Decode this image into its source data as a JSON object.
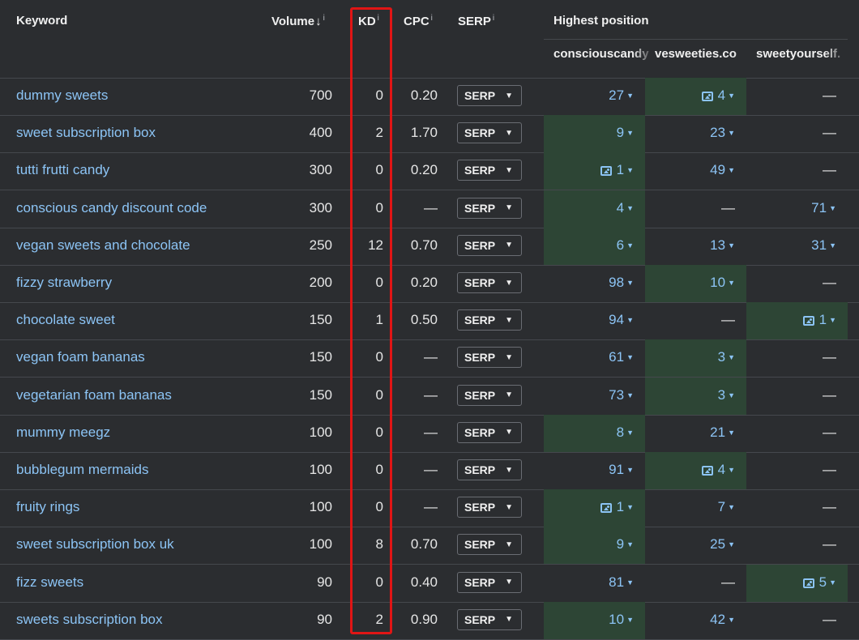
{
  "header": {
    "keyword": "Keyword",
    "volume": "Volume",
    "volume_sort_arrow": "↓",
    "kd": "KD",
    "cpc": "CPC",
    "serp": "SERP",
    "info_mark": "i",
    "highest_position": "Highest position",
    "sites": [
      "consciouscandy",
      "vesweeties.co",
      "sweetyourself."
    ]
  },
  "serp_button_label": "SERP",
  "caret": "▼",
  "dash": "—",
  "colors": {
    "highlight": "#2d4535",
    "link": "#8cc4f5",
    "kd_outline": "#e01515"
  },
  "rows": [
    {
      "keyword": "dummy sweets",
      "volume": "700",
      "kd": "0",
      "cpc": "0.20",
      "pos": [
        {
          "v": "27",
          "hl": false,
          "img": false
        },
        {
          "v": "4",
          "hl": true,
          "img": true
        },
        {
          "v": "",
          "hl": false,
          "img": false
        }
      ]
    },
    {
      "keyword": "sweet subscription box",
      "volume": "400",
      "kd": "2",
      "cpc": "1.70",
      "pos": [
        {
          "v": "9",
          "hl": true,
          "img": false
        },
        {
          "v": "23",
          "hl": false,
          "img": false
        },
        {
          "v": "",
          "hl": false,
          "img": false
        }
      ]
    },
    {
      "keyword": "tutti frutti candy",
      "volume": "300",
      "kd": "0",
      "cpc": "0.20",
      "pos": [
        {
          "v": "1",
          "hl": true,
          "img": true
        },
        {
          "v": "49",
          "hl": false,
          "img": false
        },
        {
          "v": "",
          "hl": false,
          "img": false
        }
      ]
    },
    {
      "keyword": "conscious candy discount code",
      "volume": "300",
      "kd": "0",
      "cpc": "—",
      "pos": [
        {
          "v": "4",
          "hl": true,
          "img": false
        },
        {
          "v": "",
          "hl": false,
          "img": false
        },
        {
          "v": "71",
          "hl": false,
          "img": false
        }
      ]
    },
    {
      "keyword": "vegan sweets and chocolate",
      "volume": "250",
      "kd": "12",
      "cpc": "0.70",
      "pos": [
        {
          "v": "6",
          "hl": true,
          "img": false
        },
        {
          "v": "13",
          "hl": false,
          "img": false
        },
        {
          "v": "31",
          "hl": false,
          "img": false
        }
      ]
    },
    {
      "keyword": "fizzy strawberry",
      "volume": "200",
      "kd": "0",
      "cpc": "0.20",
      "pos": [
        {
          "v": "98",
          "hl": false,
          "img": false
        },
        {
          "v": "10",
          "hl": true,
          "img": false
        },
        {
          "v": "",
          "hl": false,
          "img": false
        }
      ]
    },
    {
      "keyword": "chocolate sweet",
      "volume": "150",
      "kd": "1",
      "cpc": "0.50",
      "pos": [
        {
          "v": "94",
          "hl": false,
          "img": false
        },
        {
          "v": "",
          "hl": false,
          "img": false
        },
        {
          "v": "1",
          "hl": true,
          "img": true
        }
      ]
    },
    {
      "keyword": "vegan foam bananas",
      "volume": "150",
      "kd": "0",
      "cpc": "—",
      "pos": [
        {
          "v": "61",
          "hl": false,
          "img": false
        },
        {
          "v": "3",
          "hl": true,
          "img": false
        },
        {
          "v": "",
          "hl": false,
          "img": false
        }
      ]
    },
    {
      "keyword": "vegetarian foam bananas",
      "volume": "150",
      "kd": "0",
      "cpc": "—",
      "pos": [
        {
          "v": "73",
          "hl": false,
          "img": false
        },
        {
          "v": "3",
          "hl": true,
          "img": false
        },
        {
          "v": "",
          "hl": false,
          "img": false
        }
      ]
    },
    {
      "keyword": "mummy meegz",
      "volume": "100",
      "kd": "0",
      "cpc": "—",
      "pos": [
        {
          "v": "8",
          "hl": true,
          "img": false
        },
        {
          "v": "21",
          "hl": false,
          "img": false
        },
        {
          "v": "",
          "hl": false,
          "img": false
        }
      ]
    },
    {
      "keyword": "bubblegum mermaids",
      "volume": "100",
      "kd": "0",
      "cpc": "—",
      "pos": [
        {
          "v": "91",
          "hl": false,
          "img": false
        },
        {
          "v": "4",
          "hl": true,
          "img": true
        },
        {
          "v": "",
          "hl": false,
          "img": false
        }
      ]
    },
    {
      "keyword": "fruity rings",
      "volume": "100",
      "kd": "0",
      "cpc": "—",
      "pos": [
        {
          "v": "1",
          "hl": true,
          "img": true
        },
        {
          "v": "7",
          "hl": false,
          "img": false
        },
        {
          "v": "",
          "hl": false,
          "img": false
        }
      ]
    },
    {
      "keyword": "sweet subscription box uk",
      "volume": "100",
      "kd": "8",
      "cpc": "0.70",
      "pos": [
        {
          "v": "9",
          "hl": true,
          "img": false
        },
        {
          "v": "25",
          "hl": false,
          "img": false
        },
        {
          "v": "",
          "hl": false,
          "img": false
        }
      ]
    },
    {
      "keyword": "fizz sweets",
      "volume": "90",
      "kd": "0",
      "cpc": "0.40",
      "pos": [
        {
          "v": "81",
          "hl": false,
          "img": false
        },
        {
          "v": "",
          "hl": false,
          "img": false
        },
        {
          "v": "5",
          "hl": true,
          "img": true
        }
      ]
    },
    {
      "keyword": "sweets subscription box",
      "volume": "90",
      "kd": "2",
      "cpc": "0.90",
      "pos": [
        {
          "v": "10",
          "hl": true,
          "img": false
        },
        {
          "v": "42",
          "hl": false,
          "img": false
        },
        {
          "v": "",
          "hl": false,
          "img": false
        }
      ]
    }
  ]
}
